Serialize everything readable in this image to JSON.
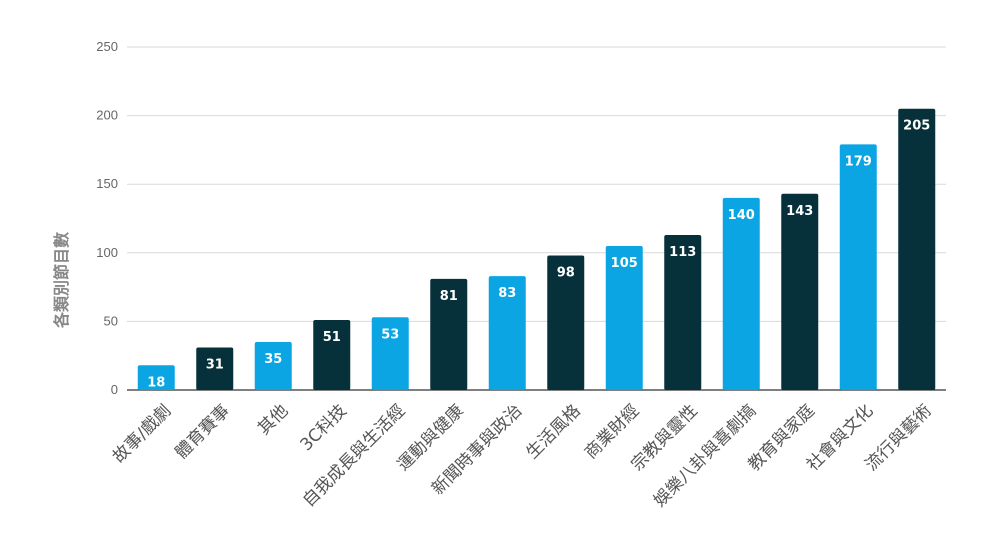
{
  "chart_data": {
    "type": "bar",
    "title": "",
    "xlabel": "",
    "ylabel": "各類別節目數",
    "ylim": [
      0,
      250
    ],
    "yticks": [
      0,
      50,
      100,
      150,
      200,
      250
    ],
    "grid": true,
    "legend": "none",
    "categories": [
      "故事/戲劇",
      "體育賽事",
      "其他",
      "3C科技",
      "自我成長與生活經",
      "運動與健康",
      "新聞時事與政治",
      "生活風格",
      "商業財經",
      "宗教與靈性",
      "娛樂八卦與喜劇搞",
      "教育與家庭",
      "社會與文化",
      "流行與藝術"
    ],
    "values": [
      18,
      31,
      35,
      51,
      53,
      81,
      83,
      98,
      105,
      113,
      140,
      143,
      179,
      205
    ],
    "bar_colors": [
      "#0ba5e3",
      "#06303a",
      "#0ba5e3",
      "#06303a",
      "#0ba5e3",
      "#06303a",
      "#0ba5e3",
      "#06303a",
      "#0ba5e3",
      "#06303a",
      "#0ba5e3",
      "#06303a",
      "#0ba5e3",
      "#06303a"
    ],
    "data_labels": [
      "18",
      "31",
      "35",
      "51",
      "53",
      "81",
      "83",
      "98",
      "105",
      "113",
      "140",
      "143",
      "179",
      "205"
    ]
  }
}
